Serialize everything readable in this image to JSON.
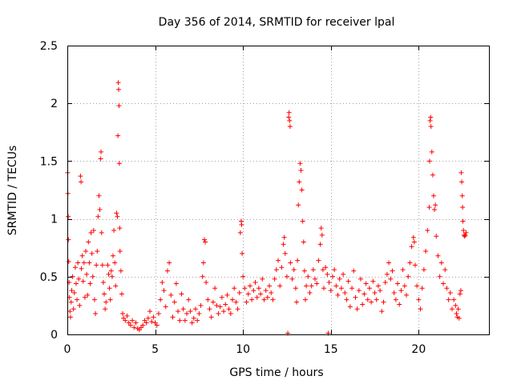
{
  "chart_data": {
    "type": "scatter",
    "title": "Day 356 of 2014, SRMTID for receiver lpal",
    "xlabel": "GPS time / hours",
    "ylabel": "SRMTID / TECUs",
    "xlim": [
      0,
      24
    ],
    "ylim": [
      0,
      2.5
    ],
    "xticks": [
      0,
      5,
      10,
      15,
      20
    ],
    "xtick_labels": [
      "0",
      "5",
      "10",
      "15",
      "20"
    ],
    "yticks": [
      0,
      0.5,
      1,
      1.5,
      2,
      2.5
    ],
    "ytick_labels": [
      "0",
      "0.5",
      "1",
      "1.5",
      "2",
      "2.5"
    ],
    "grid": true,
    "marker": "+",
    "series": [
      {
        "name": "SRMTID",
        "color": "#ff0000",
        "points": [
          [
            0.02,
            1.4
          ],
          [
            0.03,
            1.22
          ],
          [
            0.05,
            1.02
          ],
          [
            0.06,
            0.82
          ],
          [
            0.08,
            0.63
          ],
          [
            0.1,
            0.45
          ],
          [
            0.12,
            0.32
          ],
          [
            0.15,
            0.2
          ],
          [
            0.18,
            0.15
          ],
          [
            0.22,
            0.28
          ],
          [
            0.25,
            0.38
          ],
          [
            0.3,
            0.5
          ],
          [
            0.35,
            0.22
          ],
          [
            0.4,
            0.36
          ],
          [
            0.45,
            0.58
          ],
          [
            0.5,
            0.44
          ],
          [
            0.55,
            0.3
          ],
          [
            0.6,
            0.62
          ],
          [
            0.65,
            0.48
          ],
          [
            0.7,
            0.25
          ],
          [
            0.75,
            1.37
          ],
          [
            0.78,
            1.32
          ],
          [
            0.8,
            0.57
          ],
          [
            0.85,
            0.68
          ],
          [
            0.9,
            0.46
          ],
          [
            0.95,
            0.62
          ],
          [
            1.0,
            0.32
          ],
          [
            1.05,
            0.72
          ],
          [
            1.1,
            0.52
          ],
          [
            1.15,
            0.34
          ],
          [
            1.2,
            0.8
          ],
          [
            1.25,
            0.62
          ],
          [
            1.3,
            0.44
          ],
          [
            1.35,
            0.88
          ],
          [
            1.4,
            0.7
          ],
          [
            1.45,
            0.5
          ],
          [
            1.5,
            0.9
          ],
          [
            1.55,
            0.3
          ],
          [
            1.6,
            0.18
          ],
          [
            1.65,
            0.6
          ],
          [
            1.7,
            0.72
          ],
          [
            1.75,
            1.02
          ],
          [
            1.8,
            1.2
          ],
          [
            1.85,
            1.08
          ],
          [
            1.9,
            1.52
          ],
          [
            1.92,
            1.58
          ],
          [
            1.95,
            0.88
          ],
          [
            2.0,
            0.6
          ],
          [
            2.05,
            0.45
          ],
          [
            2.1,
            0.35
          ],
          [
            2.15,
            0.22
          ],
          [
            2.2,
            0.28
          ],
          [
            2.3,
            0.6
          ],
          [
            2.35,
            0.52
          ],
          [
            2.4,
            0.4
          ],
          [
            2.45,
            0.3
          ],
          [
            2.5,
            0.55
          ],
          [
            2.55,
            0.5
          ],
          [
            2.6,
            0.68
          ],
          [
            2.65,
            0.9
          ],
          [
            2.7,
            0.62
          ],
          [
            2.75,
            0.42
          ],
          [
            2.8,
            1.05
          ],
          [
            2.85,
            1.02
          ],
          [
            2.88,
            1.72
          ],
          [
            2.9,
            2.18
          ],
          [
            2.92,
            2.12
          ],
          [
            2.94,
            1.98
          ],
          [
            2.96,
            1.48
          ],
          [
            2.98,
            0.92
          ],
          [
            3.0,
            0.72
          ],
          [
            3.05,
            0.55
          ],
          [
            3.1,
            0.35
          ],
          [
            3.15,
            0.18
          ],
          [
            3.2,
            0.14
          ],
          [
            3.3,
            0.12
          ],
          [
            3.4,
            0.16
          ],
          [
            3.5,
            0.1
          ],
          [
            3.6,
            0.08
          ],
          [
            3.7,
            0.12
          ],
          [
            3.8,
            0.06
          ],
          [
            3.9,
            0.1
          ],
          [
            4.0,
            0.05
          ],
          [
            4.1,
            0.04
          ],
          [
            4.2,
            0.06
          ],
          [
            4.3,
            0.08
          ],
          [
            4.4,
            0.12
          ],
          [
            4.5,
            0.1
          ],
          [
            4.6,
            0.14
          ],
          [
            4.7,
            0.2
          ],
          [
            4.8,
            0.11
          ],
          [
            4.9,
            0.15
          ],
          [
            5.0,
            0.1
          ],
          [
            5.1,
            0.08
          ],
          [
            5.2,
            0.18
          ],
          [
            5.3,
            0.3
          ],
          [
            5.4,
            0.45
          ],
          [
            5.5,
            0.38
          ],
          [
            5.6,
            0.24
          ],
          [
            5.7,
            0.55
          ],
          [
            5.8,
            0.62
          ],
          [
            5.9,
            0.34
          ],
          [
            6.0,
            0.15
          ],
          [
            6.1,
            0.28
          ],
          [
            6.2,
            0.44
          ],
          [
            6.3,
            0.2
          ],
          [
            6.4,
            0.12
          ],
          [
            6.5,
            0.35
          ],
          [
            6.6,
            0.22
          ],
          [
            6.7,
            0.12
          ],
          [
            6.8,
            0.18
          ],
          [
            6.9,
            0.3
          ],
          [
            7.0,
            0.2
          ],
          [
            7.1,
            0.1
          ],
          [
            7.2,
            0.14
          ],
          [
            7.3,
            0.22
          ],
          [
            7.4,
            0.12
          ],
          [
            7.5,
            0.18
          ],
          [
            7.6,
            0.25
          ],
          [
            7.7,
            0.5
          ],
          [
            7.75,
            0.62
          ],
          [
            7.8,
            0.82
          ],
          [
            7.85,
            0.8
          ],
          [
            7.9,
            0.45
          ],
          [
            8.0,
            0.3
          ],
          [
            8.1,
            0.22
          ],
          [
            8.2,
            0.15
          ],
          [
            8.3,
            0.28
          ],
          [
            8.4,
            0.4
          ],
          [
            8.5,
            0.25
          ],
          [
            8.6,
            0.18
          ],
          [
            8.7,
            0.24
          ],
          [
            8.8,
            0.32
          ],
          [
            8.9,
            0.2
          ],
          [
            9.0,
            0.26
          ],
          [
            9.1,
            0.34
          ],
          [
            9.2,
            0.22
          ],
          [
            9.3,
            0.18
          ],
          [
            9.4,
            0.3
          ],
          [
            9.5,
            0.4
          ],
          [
            9.6,
            0.28
          ],
          [
            9.7,
            0.22
          ],
          [
            9.8,
            0.36
          ],
          [
            9.85,
            0.88
          ],
          [
            9.9,
            0.98
          ],
          [
            9.92,
            0.95
          ],
          [
            9.95,
            0.7
          ],
          [
            10.0,
            0.5
          ],
          [
            10.1,
            0.4
          ],
          [
            10.2,
            0.28
          ],
          [
            10.3,
            0.35
          ],
          [
            10.4,
            0.42
          ],
          [
            10.5,
            0.3
          ],
          [
            10.6,
            0.38
          ],
          [
            10.7,
            0.45
          ],
          [
            10.8,
            0.32
          ],
          [
            10.9,
            0.4
          ],
          [
            11.0,
            0.35
          ],
          [
            11.1,
            0.48
          ],
          [
            11.2,
            0.3
          ],
          [
            11.3,
            0.38
          ],
          [
            11.4,
            0.32
          ],
          [
            11.5,
            0.42
          ],
          [
            11.6,
            0.36
          ],
          [
            11.7,
            0.3
          ],
          [
            11.8,
            0.48
          ],
          [
            11.9,
            0.56
          ],
          [
            12.0,
            0.64
          ],
          [
            12.1,
            0.42
          ],
          [
            12.2,
            0.58
          ],
          [
            12.3,
            0.78
          ],
          [
            12.35,
            0.84
          ],
          [
            12.4,
            0.7
          ],
          [
            12.5,
            0.5
          ],
          [
            12.55,
            0.01
          ],
          [
            12.6,
            1.88
          ],
          [
            12.62,
            1.92
          ],
          [
            12.65,
            1.85
          ],
          [
            12.68,
            1.8
          ],
          [
            12.7,
            0.62
          ],
          [
            12.8,
            0.48
          ],
          [
            12.9,
            0.56
          ],
          [
            13.0,
            0.4
          ],
          [
            13.05,
            0.28
          ],
          [
            13.1,
            0.64
          ],
          [
            13.15,
            1.12
          ],
          [
            13.2,
            1.32
          ],
          [
            13.25,
            1.48
          ],
          [
            13.3,
            1.42
          ],
          [
            13.35,
            1.25
          ],
          [
            13.4,
            0.98
          ],
          [
            13.45,
            0.8
          ],
          [
            13.5,
            0.55
          ],
          [
            13.55,
            0.3
          ],
          [
            13.6,
            0.42
          ],
          [
            13.7,
            0.5
          ],
          [
            13.8,
            0.36
          ],
          [
            13.9,
            0.42
          ],
          [
            14.0,
            0.56
          ],
          [
            14.1,
            0.48
          ],
          [
            14.2,
            0.44
          ],
          [
            14.3,
            0.64
          ],
          [
            14.4,
            0.78
          ],
          [
            14.45,
            0.92
          ],
          [
            14.5,
            0.86
          ],
          [
            14.55,
            0.56
          ],
          [
            14.6,
            0.4
          ],
          [
            14.7,
            0.58
          ],
          [
            14.8,
            0.52
          ],
          [
            14.85,
            0.01
          ],
          [
            14.9,
            0.45
          ],
          [
            15.0,
            0.38
          ],
          [
            15.1,
            0.5
          ],
          [
            15.2,
            0.56
          ],
          [
            15.3,
            0.42
          ],
          [
            15.4,
            0.34
          ],
          [
            15.5,
            0.48
          ],
          [
            15.6,
            0.4
          ],
          [
            15.7,
            0.52
          ],
          [
            15.8,
            0.36
          ],
          [
            15.9,
            0.3
          ],
          [
            16.0,
            0.46
          ],
          [
            16.1,
            0.24
          ],
          [
            16.2,
            0.4
          ],
          [
            16.3,
            0.55
          ],
          [
            16.4,
            0.32
          ],
          [
            16.5,
            0.22
          ],
          [
            16.6,
            0.38
          ],
          [
            16.7,
            0.48
          ],
          [
            16.8,
            0.26
          ],
          [
            16.9,
            0.35
          ],
          [
            17.0,
            0.44
          ],
          [
            17.1,
            0.3
          ],
          [
            17.2,
            0.4
          ],
          [
            17.3,
            0.28
          ],
          [
            17.4,
            0.46
          ],
          [
            17.5,
            0.36
          ],
          [
            17.6,
            0.3
          ],
          [
            17.7,
            0.42
          ],
          [
            17.8,
            0.38
          ],
          [
            17.9,
            0.2
          ],
          [
            18.0,
            0.28
          ],
          [
            18.1,
            0.45
          ],
          [
            18.2,
            0.52
          ],
          [
            18.3,
            0.62
          ],
          [
            18.4,
            0.48
          ],
          [
            18.5,
            0.55
          ],
          [
            18.6,
            0.36
          ],
          [
            18.7,
            0.3
          ],
          [
            18.8,
            0.44
          ],
          [
            18.9,
            0.26
          ],
          [
            19.0,
            0.38
          ],
          [
            19.1,
            0.56
          ],
          [
            19.2,
            0.42
          ],
          [
            19.3,
            0.34
          ],
          [
            19.4,
            0.5
          ],
          [
            19.5,
            0.62
          ],
          [
            19.6,
            0.76
          ],
          [
            19.7,
            0.84
          ],
          [
            19.75,
            0.8
          ],
          [
            19.8,
            0.6
          ],
          [
            19.9,
            0.42
          ],
          [
            20.0,
            0.3
          ],
          [
            20.1,
            0.22
          ],
          [
            20.2,
            0.4
          ],
          [
            20.3,
            0.56
          ],
          [
            20.4,
            0.72
          ],
          [
            20.5,
            0.9
          ],
          [
            20.6,
            1.1
          ],
          [
            20.62,
            1.5
          ],
          [
            20.65,
            1.85
          ],
          [
            20.68,
            1.88
          ],
          [
            20.7,
            1.8
          ],
          [
            20.75,
            1.58
          ],
          [
            20.8,
            1.38
          ],
          [
            20.85,
            1.2
          ],
          [
            20.9,
            1.08
          ],
          [
            20.95,
            1.12
          ],
          [
            21.0,
            0.85
          ],
          [
            21.1,
            0.68
          ],
          [
            21.2,
            0.5
          ],
          [
            21.3,
            0.62
          ],
          [
            21.4,
            0.44
          ],
          [
            21.5,
            0.56
          ],
          [
            21.6,
            0.4
          ],
          [
            21.7,
            0.3
          ],
          [
            21.8,
            0.36
          ],
          [
            21.9,
            0.22
          ],
          [
            22.0,
            0.3
          ],
          [
            22.1,
            0.25
          ],
          [
            22.15,
            0.18
          ],
          [
            22.2,
            0.15
          ],
          [
            22.25,
            0.22
          ],
          [
            22.3,
            0.14
          ],
          [
            22.35,
            0.35
          ],
          [
            22.4,
            0.38
          ],
          [
            22.42,
            1.4
          ],
          [
            22.45,
            1.32
          ],
          [
            22.48,
            1.2
          ],
          [
            22.5,
            1.1
          ],
          [
            22.52,
            0.98
          ],
          [
            22.55,
            0.9
          ],
          [
            22.58,
            0.86
          ],
          [
            22.62,
            0.85
          ],
          [
            22.66,
            0.86
          ],
          [
            22.7,
            0.88
          ]
        ]
      }
    ]
  }
}
